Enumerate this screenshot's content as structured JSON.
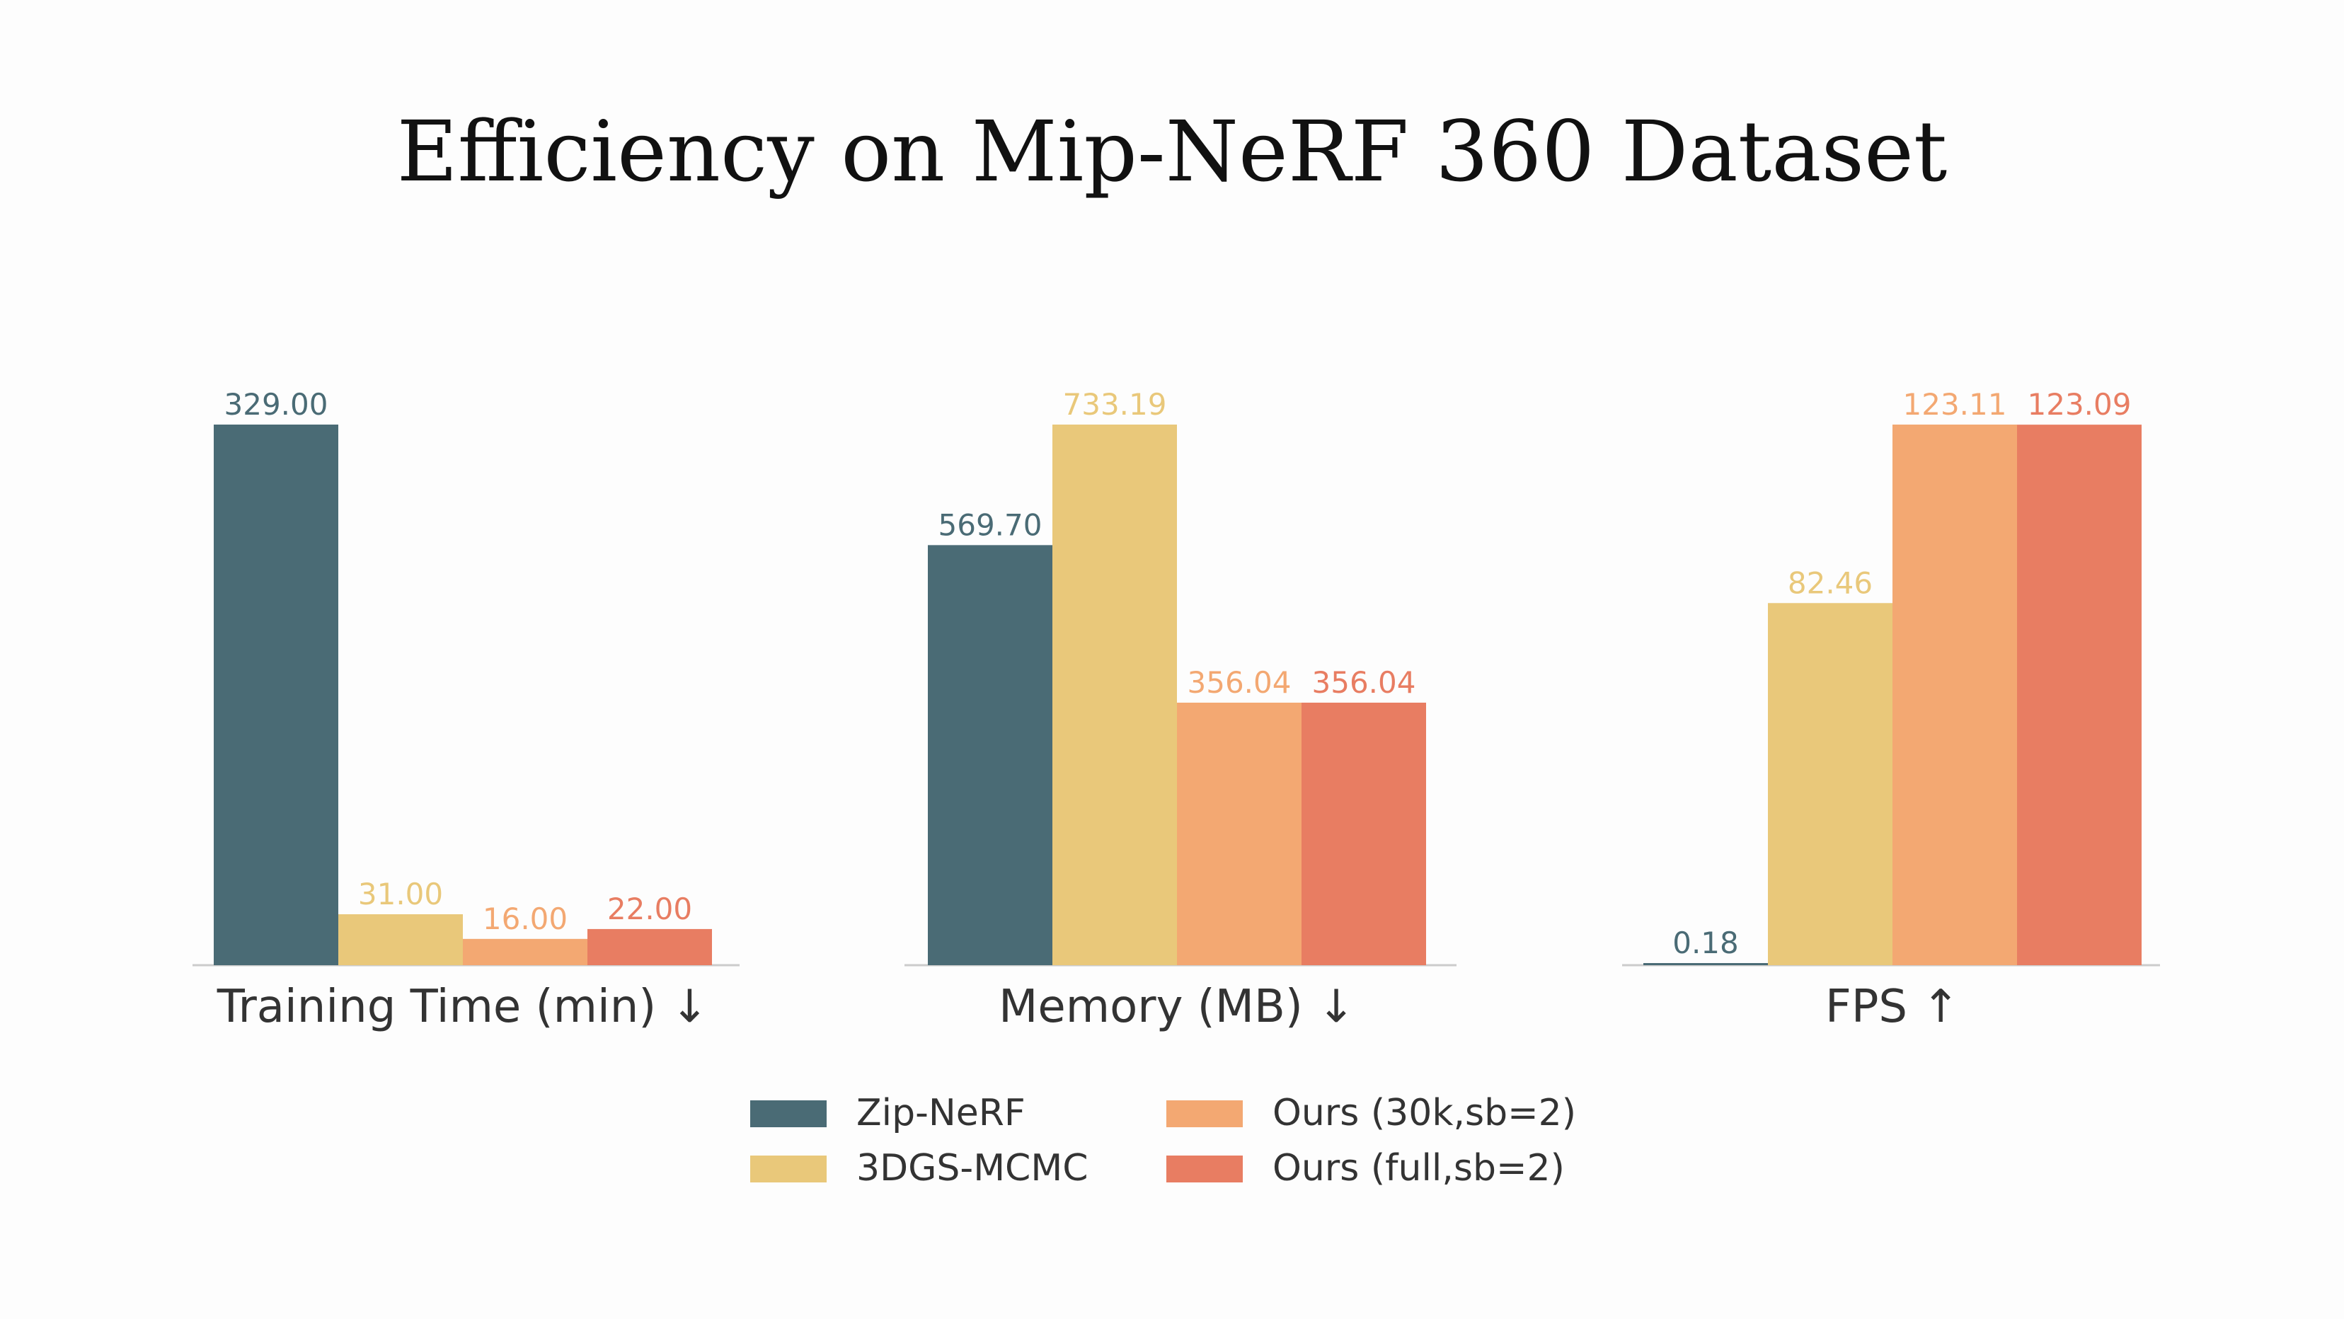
{
  "chart_data": {
    "type": "bar",
    "title": "Efficiency on Mip-NeRF 360 Dataset",
    "series": [
      {
        "name": "Zip-NeRF",
        "color": "#4a6b75"
      },
      {
        "name": "3DGS-MCMC",
        "color": "#e9c87a"
      },
      {
        "name": "Ours (30k,sb=2)",
        "color": "#f3a872"
      },
      {
        "name": "Ours (full,sb=2)",
        "color": "#e87d62"
      }
    ],
    "groups": [
      {
        "label": "Training Time (min) ↓",
        "values": [
          329.0,
          31.0,
          16.0,
          22.0
        ],
        "labels": [
          "329.00",
          "31.00",
          "16.00",
          "22.00"
        ]
      },
      {
        "label": "Memory (MB) ↓",
        "values": [
          569.7,
          733.19,
          356.04,
          356.04
        ],
        "labels": [
          "569.70",
          "733.19",
          "356.04",
          "356.04"
        ]
      },
      {
        "label": "FPS ↑",
        "values": [
          0.18,
          82.46,
          123.11,
          123.09
        ],
        "labels": [
          "0.18",
          "82.46",
          "123.11",
          "123.09"
        ]
      }
    ],
    "legend_position": "bottom-center",
    "grid": false
  }
}
